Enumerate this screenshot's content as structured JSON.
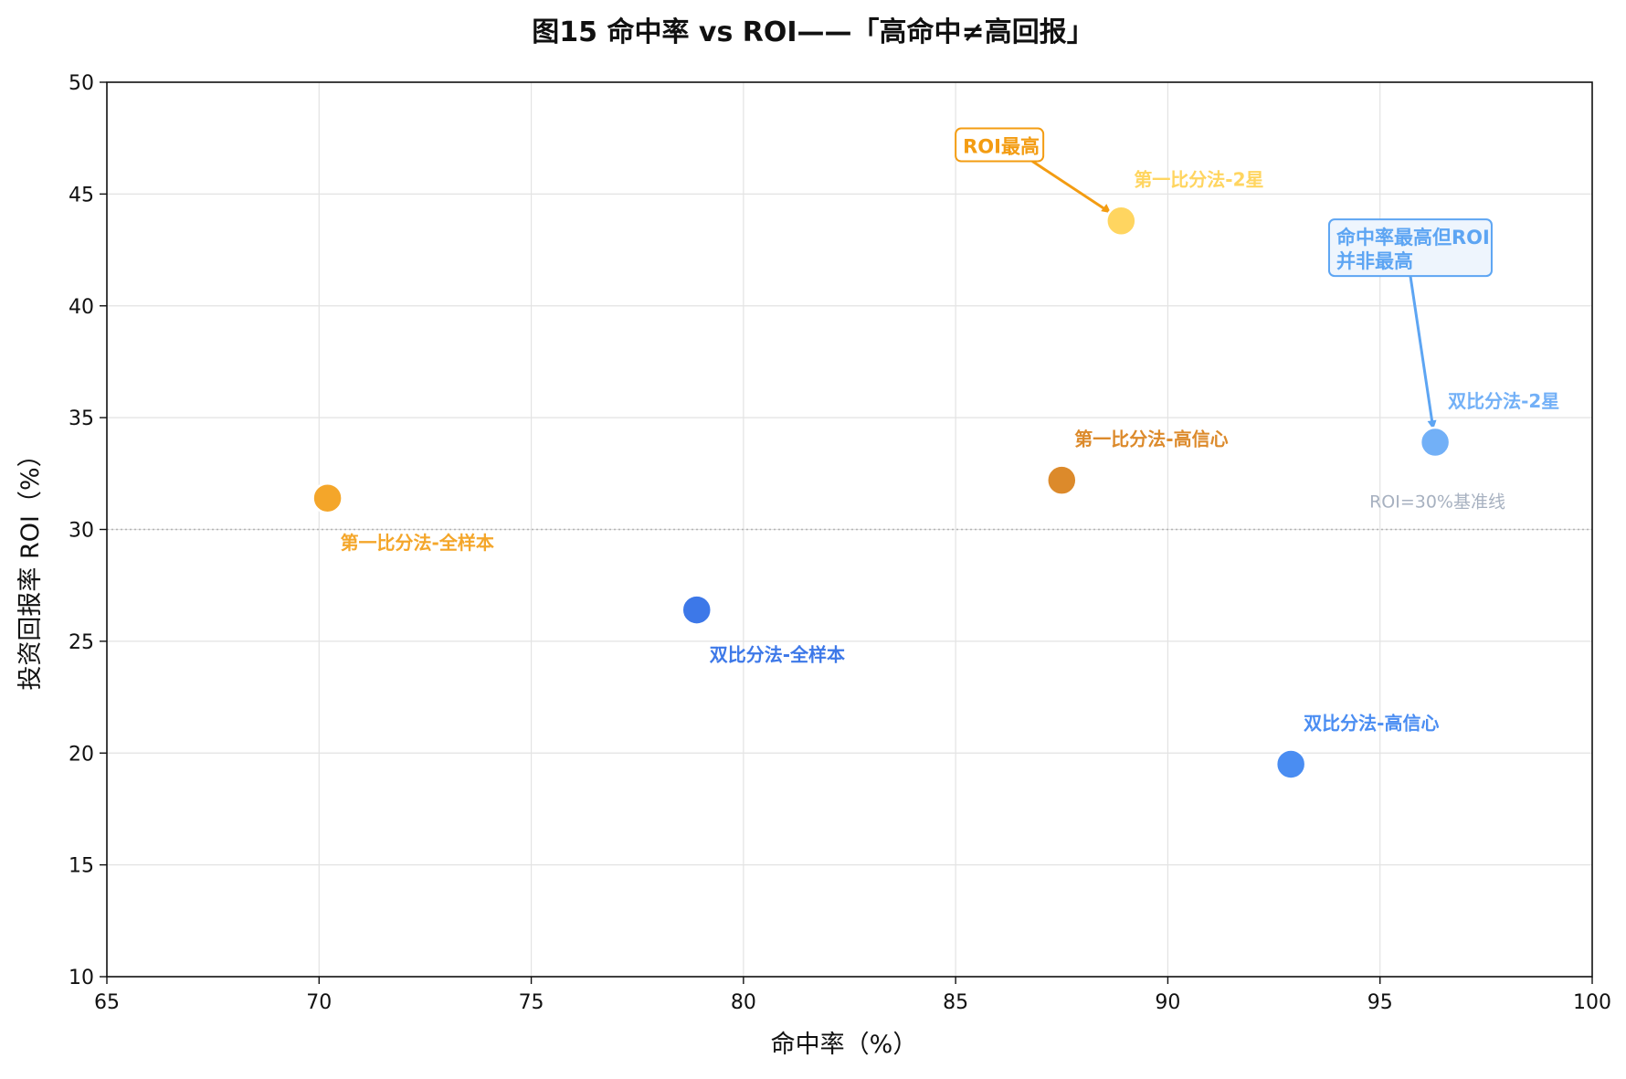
{
  "chart_data": {
    "type": "scatter",
    "title": "图15  命中率 vs ROI——「高命中≠高回报」",
    "xlabel": "命中率（%）",
    "ylabel": "投资回报率 ROI（%）",
    "xlim": [
      65,
      100
    ],
    "ylim": [
      10,
      50
    ],
    "xticks": [
      65,
      70,
      75,
      80,
      85,
      90,
      95,
      100
    ],
    "yticks": [
      10,
      15,
      20,
      25,
      30,
      35,
      40,
      45,
      50
    ],
    "grid": true,
    "points": [
      {
        "label": "第一比分法-全样本",
        "x": 70.2,
        "y": 31.4,
        "color": "#f4a62a",
        "label_pos": "below-right"
      },
      {
        "label": "双比分法-全样本",
        "x": 78.9,
        "y": 26.4,
        "color": "#3d78e8",
        "label_pos": "below-right"
      },
      {
        "label": "第一比分法-高信心",
        "x": 87.5,
        "y": 32.2,
        "color": "#dc8a2b",
        "label_pos": "above-right"
      },
      {
        "label": "第一比分法-2星",
        "x": 88.9,
        "y": 43.8,
        "color": "#ffd560",
        "label_pos": "above-right"
      },
      {
        "label": "双比分法-高信心",
        "x": 92.9,
        "y": 19.5,
        "color": "#4a8df2",
        "label_pos": "above-right"
      },
      {
        "label": "双比分法-2星",
        "x": 96.3,
        "y": 33.9,
        "color": "#72b0f7",
        "label_pos": "above-right"
      }
    ],
    "reference_line": {
      "y": 30,
      "label": "ROI=30%基准线",
      "color": "#b4b4b4"
    },
    "annotations": [
      {
        "text": [
          "ROI最高"
        ],
        "target_x": 88.9,
        "target_y": 43.8,
        "text_x": 85.0,
        "text_y": 47.2,
        "color": "#f39c12",
        "bg": "#ffffff"
      },
      {
        "text": [
          "命中率最高但ROI",
          "并非最高"
        ],
        "target_x": 96.3,
        "target_y": 33.9,
        "text_x": 93.8,
        "text_y": 42.6,
        "color": "#5da5f3",
        "bg": "#eef5fd"
      }
    ]
  }
}
